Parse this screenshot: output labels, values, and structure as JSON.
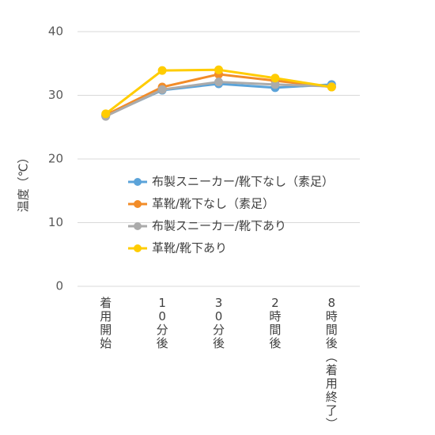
{
  "chart_data": {
    "type": "line",
    "ylabel": "温度（℃）",
    "ylim": [
      0,
      40
    ],
    "yticks": [
      0,
      10,
      20,
      30,
      40
    ],
    "grid": true,
    "legend_position": "center",
    "categories": [
      "着用開始",
      "10分後",
      "30分後",
      "2時間後",
      "8時間後（着用終了）"
    ],
    "series": [
      {
        "name": "布製スニーカー/靴下なし（素足）",
        "color": "#5BA3D9",
        "values": [
          26.8,
          30.8,
          31.8,
          31.2,
          31.7
        ]
      },
      {
        "name": "革靴/靴下なし（素足）",
        "color": "#F28C28",
        "values": [
          26.9,
          31.3,
          33.3,
          32.3,
          31.3
        ]
      },
      {
        "name": "布製スニーカー/靴下あり",
        "color": "#ABABAB",
        "values": [
          26.7,
          30.9,
          32.1,
          31.7,
          31.4
        ]
      },
      {
        "name": "革靴/靴下あり",
        "color": "#FFCC00",
        "values": [
          27.1,
          33.9,
          34.0,
          32.7,
          31.3
        ]
      }
    ]
  }
}
